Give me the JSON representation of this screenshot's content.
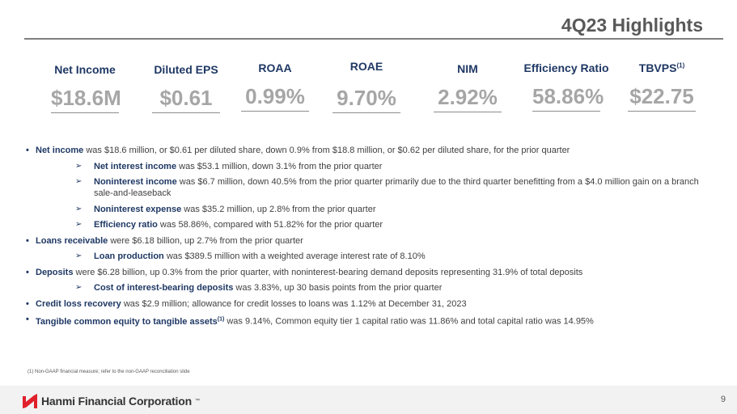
{
  "title": "4Q23 Highlights",
  "kpis": [
    {
      "label": "Net Income",
      "value": "$18.6M"
    },
    {
      "label": "Diluted EPS",
      "value": "$0.61"
    },
    {
      "label": "ROAA",
      "value": "0.99%"
    },
    {
      "label": "ROAE",
      "value": "9.70%"
    },
    {
      "label": "NIM",
      "value": "2.92%"
    },
    {
      "label": "Efficiency Ratio",
      "value": "58.86%"
    },
    {
      "label": "TBVPS",
      "sup": "(1)",
      "value": "$22.75"
    }
  ],
  "bullets": [
    {
      "k": "Net income",
      "t": " was $18.6 million, or $0.61 per diluted share, down 0.9% from $18.8 million, or $0.62 per diluted share, for the prior quarter"
    },
    {
      "k": "Net interest income",
      "t": " was $53.1 million, down 3.1% from the prior quarter"
    },
    {
      "k": "Noninterest income",
      "t": " was $6.7 million, down 40.5% from the prior quarter primarily due to the third quarter benefitting from a $4.0 million gain on a branch sale-and-leaseback"
    },
    {
      "k": "Noninterest expense",
      "t": " was $35.2 million, up 2.8% from the prior quarter"
    },
    {
      "k": "Efficiency ratio",
      "t": " was 58.86%, compared with 51.82% for the prior quarter"
    },
    {
      "k": "Loans receivable",
      "t": " were $6.18 billion, up 2.7% from the prior quarter"
    },
    {
      "k": "Loan production",
      "t": " was $389.5 million with a weighted average interest rate of 8.10%"
    },
    {
      "k": "Deposits",
      "t": " were $6.28 billion, up 0.3% from the prior quarter, with noninterest-bearing demand deposits representing 31.9% of total deposits"
    },
    {
      "k": "Cost of interest-bearing deposits",
      "t": " was 3.83%, up 30 basis points from the prior quarter"
    },
    {
      "k": "Credit loss recovery",
      "t": " was $2.9 million; allowance for credit losses to loans was 1.12% at December 31, 2023"
    },
    {
      "k": "Tangible common equity to tangible assets",
      "sup": "(1)",
      "t": " was 9.14%, Common equity tier 1 capital ratio was 11.86% and total capital ratio was 14.95%"
    }
  ],
  "footnote": "(1)    Non-GAAP financial measure; refer to the non-GAAP reconciliation slide",
  "footer": {
    "company": "Hanmi Financial Corporation",
    "tm": "™",
    "page": "9"
  },
  "colors": {
    "navy": "#1f3864",
    "logo_red": "#e0202b"
  }
}
